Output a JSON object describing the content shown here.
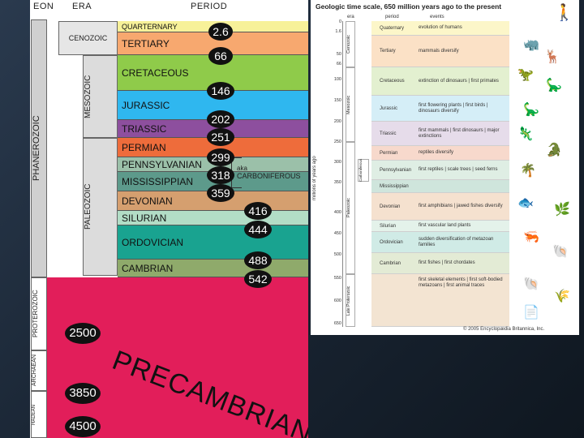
{
  "left_chart": {
    "headers": {
      "eon": "EON",
      "era": "ERA",
      "period": "PERIOD"
    },
    "eons": [
      "PHANEROZOIC",
      "PROTEROZOIC",
      "ARCHAEAN",
      "HADEAN"
    ],
    "eras": [
      "CENOZOIC",
      "MESOZOIC",
      "PALEOZOIC"
    ],
    "periods": [
      {
        "name": "QUARTERNARY",
        "color": "#f7f199"
      },
      {
        "name": "TERTIARY",
        "color": "#f7a86f"
      },
      {
        "name": "CRETACEOUS",
        "color": "#8fcb4a"
      },
      {
        "name": "JURASSIC",
        "color": "#2fb7ef"
      },
      {
        "name": "TRIASSIC",
        "color": "#8d4f9e"
      },
      {
        "name": "PERMIAN",
        "color": "#ee6c3b"
      },
      {
        "name": "PENNSYLVANIAN",
        "color": "#9bc0a9"
      },
      {
        "name": "MISSISSIPPIAN",
        "color": "#5d9a8b"
      },
      {
        "name": "DEVONIAN",
        "color": "#d59f6f"
      },
      {
        "name": "SILURIAN",
        "color": "#b2ddc6"
      },
      {
        "name": "ORDOVICIAN",
        "color": "#19a390"
      },
      {
        "name": "CAMBRIAN",
        "color": "#8faa6b"
      }
    ],
    "carboniferous": {
      "aka": "aka",
      "name": "CARBONIFEROUS"
    },
    "boundaries": [
      "2.6",
      "66",
      "146",
      "202",
      "251",
      "299",
      "318",
      "359",
      "416",
      "444",
      "488",
      "542"
    ],
    "precambrian": {
      "label": "PRECAMBRIAN",
      "color": "#e21e5a",
      "ages": [
        "2500",
        "3850",
        "4500"
      ]
    }
  },
  "right_chart": {
    "title": "Geologic time scale, 650 million years ago to the present",
    "axis_label": "millions of years ago",
    "headers": {
      "era": "era",
      "period": "period",
      "events": "events"
    },
    "ticks": [
      "0",
      "1.6",
      "50",
      "66",
      "100",
      "150",
      "200",
      "250",
      "300",
      "350",
      "400",
      "450",
      "500",
      "550",
      "600",
      "650"
    ],
    "eras": [
      "Cenozoic",
      "Mesozoic",
      "Paleozoic",
      "Late Proterozoic"
    ],
    "carboniferous": "Carboniferous",
    "rows": [
      {
        "period": "Quaternary",
        "events": "evolution of humans",
        "color": "#fcf6c9"
      },
      {
        "period": "Tertiary",
        "events": "mammals diversify",
        "color": "#fbe1c6"
      },
      {
        "period": "Cretaceous",
        "events": "extinction of dinosaurs | first primates",
        "color": "#e3f0d0"
      },
      {
        "period": "Jurassic",
        "events": "first flowering plants | first birds | dinosaurs diversify",
        "color": "#d5eef7"
      },
      {
        "period": "Triassic",
        "events": "first mammals | first dinosaurs | major extinctions",
        "color": "#e6dcea"
      },
      {
        "period": "Permian",
        "events": "reptiles diversify",
        "color": "#f7d9cc"
      },
      {
        "period": "Pennsylvanian",
        "events": "first reptiles | scale trees | seed ferns",
        "color": "#dfeee4"
      },
      {
        "period": "Mississippian",
        "events": "",
        "color": "#cfe5dc"
      },
      {
        "period": "Devonian",
        "events": "first amphibians | jawed fishes diversify",
        "color": "#f5e1cf"
      },
      {
        "period": "Silurian",
        "events": "first vascular land plants",
        "color": "#e4f2ea"
      },
      {
        "period": "Ordovician",
        "events": "sudden diversification of metazoan families",
        "color": "#d0ebe6"
      },
      {
        "period": "Cambrian",
        "events": "first fishes | first chordates",
        "color": "#e3ebd5"
      },
      {
        "period": "",
        "events": "first skeletal elements | first soft-bodied metazoans | first animal traces",
        "color": "#f3e4d2"
      }
    ],
    "copyright": "© 2005 Encyclopædia Britannica, Inc."
  }
}
